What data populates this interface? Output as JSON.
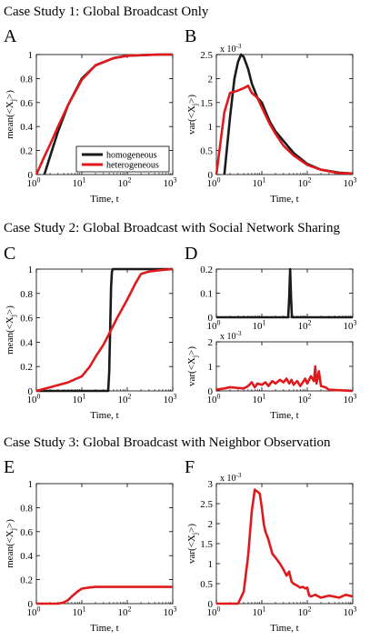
{
  "colors": {
    "homogeneous": "#1a1a1a",
    "heterogeneous": "#e0191c",
    "axis": "#000000",
    "background": "#ffffff"
  },
  "section_titles": [
    "Case Study 1: Global Broadcast Only",
    "Case Study 2: Global Broadcast with Social Network Sharing",
    "Case Study 3: Global Broadcast with Neighbor Observation"
  ],
  "panel_letters": [
    "A",
    "B",
    "C",
    "D",
    "E",
    "F"
  ],
  "legend": {
    "placement": "lower-right",
    "entries": [
      "homogeneous",
      "heterogeneous"
    ]
  },
  "chart_data": [
    {
      "panel": "A",
      "type": "line",
      "xscale": "log",
      "xlim": [
        1,
        1000
      ],
      "ylim": [
        0,
        1
      ],
      "xlabel": "Time, t",
      "ylabel": "mean(<X_j>)",
      "xticks": [
        "10^0",
        "10^1",
        "10^2",
        "10^3"
      ],
      "yticks": [
        "0",
        "0.2",
        "0.4",
        "0.6",
        "0.8",
        "1"
      ],
      "exponent": "",
      "series": [
        {
          "name": "homogeneous",
          "color": "#1a1a1a",
          "x": [
            1.5,
            2,
            3,
            5,
            10,
            20,
            50,
            100,
            200,
            500,
            1000
          ],
          "y": [
            0,
            0.15,
            0.36,
            0.58,
            0.8,
            0.91,
            0.97,
            0.99,
            0.995,
            1,
            1
          ]
        },
        {
          "name": "heterogeneous",
          "color": "#e0191c",
          "x": [
            1,
            1.5,
            2,
            3,
            5,
            10,
            20,
            50,
            100,
            200,
            500,
            1000
          ],
          "y": [
            0,
            0.15,
            0.25,
            0.4,
            0.58,
            0.79,
            0.91,
            0.97,
            0.99,
            0.995,
            1,
            1
          ]
        }
      ]
    },
    {
      "panel": "B",
      "type": "line",
      "xscale": "log",
      "xlim": [
        1,
        1000
      ],
      "ylim": [
        0,
        2.5
      ],
      "xlabel": "Time, t",
      "ylabel": "var(<X_j>)",
      "xticks": [
        "10^0",
        "10^1",
        "10^2",
        "10^3"
      ],
      "yticks": [
        "0",
        "0.5",
        "1",
        "1.5",
        "2",
        "2.5"
      ],
      "exponent": "x 10^-3",
      "series": [
        {
          "name": "homogeneous",
          "color": "#1a1a1a",
          "x": [
            1.5,
            2,
            2.5,
            3,
            3.5,
            4,
            5,
            6,
            8,
            10,
            15,
            20,
            30,
            50,
            100,
            200,
            500,
            1000
          ],
          "y": [
            0,
            1.2,
            2.0,
            2.35,
            2.5,
            2.45,
            2.2,
            1.9,
            1.6,
            1.5,
            1.1,
            0.9,
            0.7,
            0.45,
            0.22,
            0.1,
            0.04,
            0.02
          ]
        },
        {
          "name": "heterogeneous",
          "color": "#e0191c",
          "x": [
            1,
            1.5,
            2,
            3,
            4,
            5,
            6,
            8,
            10,
            15,
            20,
            30,
            50,
            100,
            200,
            500,
            1000
          ],
          "y": [
            0,
            1.3,
            1.7,
            1.75,
            1.8,
            1.85,
            1.7,
            1.6,
            1.4,
            1.05,
            0.85,
            0.6,
            0.4,
            0.2,
            0.1,
            0.03,
            0.02
          ]
        }
      ]
    },
    {
      "panel": "C",
      "type": "line",
      "xscale": "log",
      "xlim": [
        1,
        1000
      ],
      "ylim": [
        0,
        1
      ],
      "xlabel": "Time, t",
      "ylabel": "mean(<X_j>)",
      "xticks": [
        "10^0",
        "10^1",
        "10^2",
        "10^3"
      ],
      "yticks": [
        "0",
        "0.2",
        "0.4",
        "0.6",
        "0.8",
        "1"
      ],
      "exponent": "",
      "series": [
        {
          "name": "homogeneous",
          "color": "#1a1a1a",
          "x": [
            1,
            38,
            40,
            42,
            44,
            46,
            48,
            1000
          ],
          "y": [
            0,
            0,
            0.15,
            0.5,
            0.85,
            0.98,
            1,
            1
          ]
        },
        {
          "name": "heterogeneous",
          "color": "#e0191c",
          "x": [
            1,
            2,
            5,
            10,
            15,
            20,
            30,
            40,
            60,
            100,
            150,
            200,
            300,
            500,
            1000
          ],
          "y": [
            0,
            0.03,
            0.07,
            0.12,
            0.2,
            0.28,
            0.38,
            0.47,
            0.6,
            0.75,
            0.88,
            0.96,
            0.98,
            0.99,
            1
          ]
        }
      ]
    },
    {
      "panel": "D-top",
      "type": "line",
      "xscale": "log",
      "xlim": [
        1,
        1000
      ],
      "ylim": [
        0,
        0.2
      ],
      "xlabel": "",
      "ylabel": "",
      "xticks": [
        "10^0",
        "10^1",
        "10^2",
        "10^3"
      ],
      "yticks": [
        "0",
        "0.1",
        "0.2"
      ],
      "exponent": "",
      "series": [
        {
          "name": "homogeneous",
          "color": "#1a1a1a",
          "x": [
            1,
            38,
            40,
            42,
            44,
            46,
            1000
          ],
          "y": [
            0,
            0,
            0.08,
            0.2,
            0.08,
            0,
            0
          ]
        }
      ]
    },
    {
      "panel": "D-bottom",
      "type": "line",
      "xscale": "log",
      "xlim": [
        1,
        1000
      ],
      "ylim": [
        0,
        2
      ],
      "xlabel": "Time, t",
      "ylabel": "var(<X_j>)",
      "xticks": [
        "10^0",
        "10^1",
        "10^2",
        "10^3"
      ],
      "yticks": [
        "0",
        "1",
        "2"
      ],
      "exponent": "x 10^-3",
      "series": [
        {
          "name": "heterogeneous",
          "color": "#e0191c",
          "x": [
            1,
            1.5,
            2,
            3,
            4,
            5,
            6,
            7,
            8,
            10,
            12,
            14,
            17,
            20,
            25,
            30,
            35,
            40,
            45,
            50,
            60,
            70,
            80,
            90,
            100,
            120,
            140,
            150,
            160,
            180,
            200,
            250,
            300,
            1000
          ],
          "y": [
            0.05,
            0.1,
            0.15,
            0.12,
            0.1,
            0.2,
            0.35,
            0.15,
            0.3,
            0.25,
            0.35,
            0.2,
            0.4,
            0.3,
            0.45,
            0.35,
            0.5,
            0.3,
            0.45,
            0.25,
            0.4,
            0.2,
            0.35,
            0.5,
            0.3,
            0.6,
            0.4,
            1.0,
            0.3,
            0.8,
            0.2,
            0.15,
            0.05,
            0
          ]
        }
      ]
    },
    {
      "panel": "E",
      "type": "line",
      "xscale": "log",
      "xlim": [
        1,
        1000
      ],
      "ylim": [
        0,
        1
      ],
      "xlabel": "Time, t",
      "ylabel": "mean(<X_j>)",
      "xticks": [
        "10^0",
        "10^1",
        "10^2",
        "10^3"
      ],
      "yticks": [
        "0",
        "0.2",
        "0.4",
        "0.6",
        "0.8",
        "1"
      ],
      "exponent": "",
      "series": [
        {
          "name": "heterogeneous",
          "color": "#e0191c",
          "x": [
            1,
            3,
            4,
            5,
            6,
            8,
            10,
            15,
            20,
            50,
            100,
            1000
          ],
          "y": [
            0,
            0,
            0.01,
            0.03,
            0.06,
            0.1,
            0.125,
            0.135,
            0.14,
            0.14,
            0.14,
            0.14
          ]
        }
      ]
    },
    {
      "panel": "F",
      "type": "line",
      "xscale": "log",
      "xlim": [
        1,
        1000
      ],
      "ylim": [
        0,
        3
      ],
      "xlabel": "Time, t",
      "ylabel": "var(<X_j>)",
      "xticks": [
        "10^0",
        "10^1",
        "10^2",
        "10^3"
      ],
      "yticks": [
        "0",
        "0.5",
        "1",
        "1.5",
        "2",
        "2.5",
        "3"
      ],
      "exponent": "x 10^-3",
      "series": [
        {
          "name": "heterogeneous",
          "color": "#e0191c",
          "x": [
            1,
            3,
            4,
            5,
            6,
            7,
            8,
            9,
            10,
            11,
            12,
            14,
            17,
            20,
            25,
            30,
            35,
            40,
            45,
            50,
            60,
            70,
            80,
            90,
            100,
            110,
            120,
            150,
            200,
            300,
            500,
            700,
            1000
          ],
          "y": [
            0,
            0,
            0.3,
            1.2,
            2.3,
            2.85,
            2.8,
            2.75,
            2.4,
            2.0,
            1.8,
            1.6,
            1.25,
            1.15,
            1.0,
            0.85,
            0.7,
            0.8,
            0.55,
            0.5,
            0.45,
            0.4,
            0.42,
            0.38,
            0.4,
            0.2,
            0.18,
            0.22,
            0.15,
            0.2,
            0.15,
            0.22,
            0.18
          ]
        }
      ]
    }
  ]
}
